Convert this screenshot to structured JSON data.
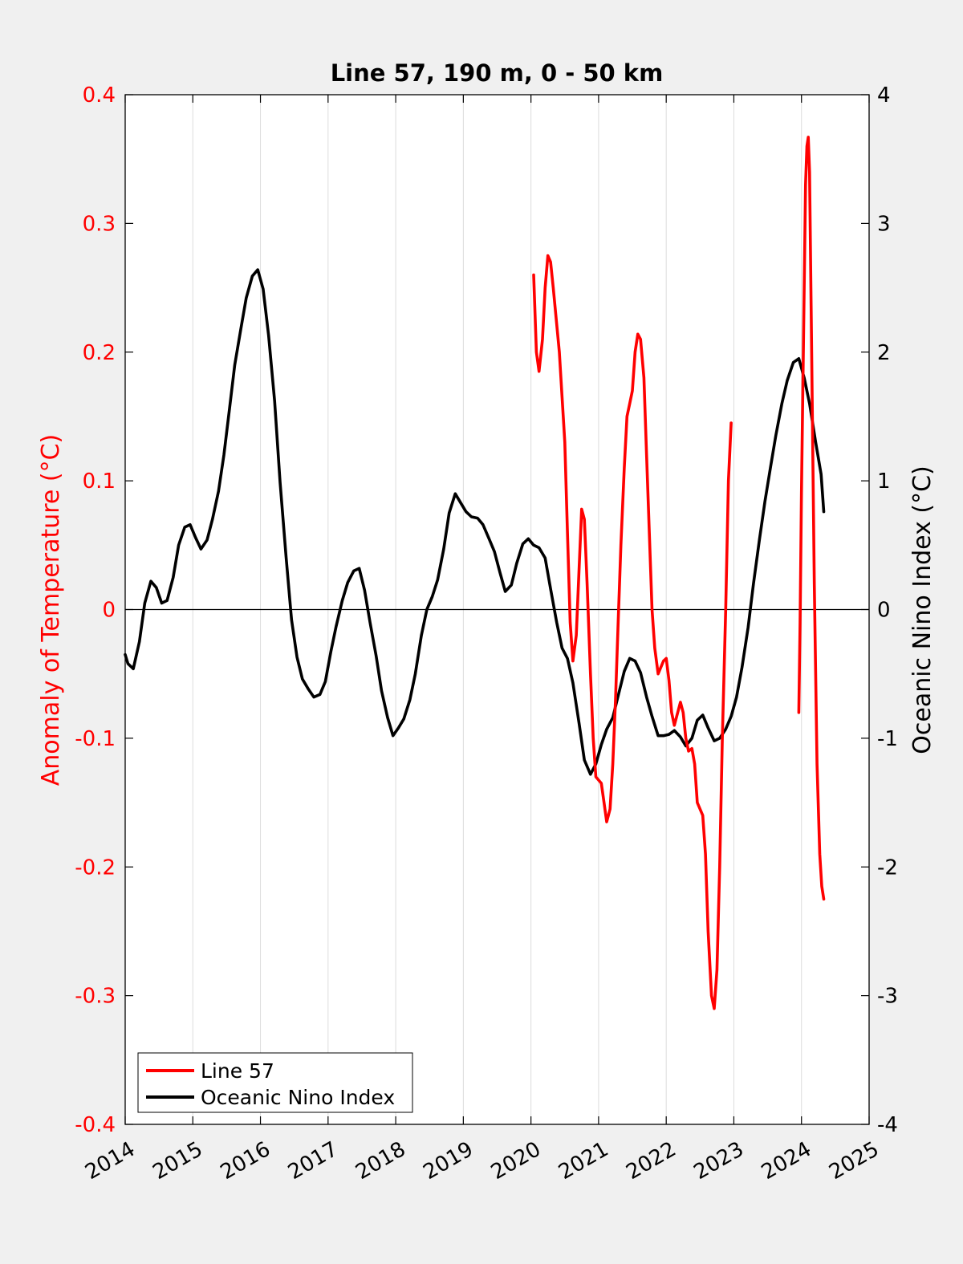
{
  "chart_data": {
    "type": "line",
    "title": "Line 57, 190 m, 0 - 50 km",
    "xlabel": "",
    "ylabel_left": "Anomaly of Temperature (°C)",
    "ylabel_right": "Oceanic Nino Index (°C)",
    "xlim": [
      2014,
      2025
    ],
    "ylim_left": [
      -0.4,
      0.4
    ],
    "ylim_right": [
      -4,
      4
    ],
    "x_ticks": [
      "2014",
      "2015",
      "2016",
      "2017",
      "2018",
      "2019",
      "2020",
      "2021",
      "2022",
      "2023",
      "2024",
      "2025"
    ],
    "y_ticks_left": [
      "-0.4",
      "-0.3",
      "-0.2",
      "-0.1",
      "0",
      "0.1",
      "0.2",
      "0.3",
      "0.4"
    ],
    "y_ticks_right": [
      "-4",
      "-3",
      "-2",
      "-1",
      "0",
      "1",
      "2",
      "3",
      "4"
    ],
    "grid": "vertical",
    "zero_line": true,
    "legend_position": "bottom-left",
    "colors": {
      "line57": "#ff0000",
      "oni": "#000000",
      "left_axis": "#ff0000",
      "right_axis": "#000000",
      "background": "#f0f0f0",
      "plot_area": "#ffffff"
    },
    "series": [
      {
        "name": "Line 57",
        "axis": "left",
        "segments": [
          [
            [
              2020.04,
              0.26
            ],
            [
              2020.08,
              0.2
            ],
            [
              2020.12,
              0.185
            ],
            [
              2020.17,
              0.21
            ],
            [
              2020.21,
              0.25
            ],
            [
              2020.25,
              0.275
            ],
            [
              2020.29,
              0.27
            ],
            [
              2020.33,
              0.25
            ],
            [
              2020.42,
              0.2
            ],
            [
              2020.5,
              0.13
            ],
            [
              2020.54,
              0.06
            ],
            [
              2020.58,
              -0.01
            ],
            [
              2020.62,
              -0.04
            ],
            [
              2020.67,
              -0.02
            ],
            [
              2020.71,
              0.03
            ],
            [
              2020.75,
              0.078
            ],
            [
              2020.79,
              0.07
            ],
            [
              2020.83,
              0.02
            ],
            [
              2020.88,
              -0.05
            ],
            [
              2020.92,
              -0.1
            ],
            [
              2020.96,
              -0.13
            ],
            [
              2021.04,
              -0.135
            ],
            [
              2021.08,
              -0.15
            ],
            [
              2021.12,
              -0.165
            ],
            [
              2021.17,
              -0.155
            ],
            [
              2021.21,
              -0.12
            ],
            [
              2021.25,
              -0.07
            ],
            [
              2021.29,
              -0.01
            ],
            [
              2021.33,
              0.05
            ],
            [
              2021.38,
              0.11
            ],
            [
              2021.42,
              0.15
            ],
            [
              2021.46,
              0.16
            ],
            [
              2021.5,
              0.17
            ],
            [
              2021.54,
              0.2
            ],
            [
              2021.58,
              0.214
            ],
            [
              2021.62,
              0.21
            ],
            [
              2021.67,
              0.18
            ],
            [
              2021.71,
              0.12
            ],
            [
              2021.75,
              0.06
            ],
            [
              2021.79,
              0.0
            ],
            [
              2021.83,
              -0.03
            ],
            [
              2021.88,
              -0.05
            ],
            [
              2021.92,
              -0.045
            ],
            [
              2021.96,
              -0.04
            ],
            [
              2022.0,
              -0.038
            ],
            [
              2022.04,
              -0.055
            ],
            [
              2022.08,
              -0.08
            ],
            [
              2022.12,
              -0.09
            ],
            [
              2022.17,
              -0.08
            ],
            [
              2022.21,
              -0.072
            ],
            [
              2022.25,
              -0.08
            ],
            [
              2022.29,
              -0.1
            ],
            [
              2022.33,
              -0.11
            ],
            [
              2022.38,
              -0.108
            ],
            [
              2022.42,
              -0.12
            ],
            [
              2022.46,
              -0.15
            ],
            [
              2022.5,
              -0.155
            ],
            [
              2022.54,
              -0.16
            ],
            [
              2022.58,
              -0.19
            ],
            [
              2022.62,
              -0.25
            ],
            [
              2022.67,
              -0.3
            ],
            [
              2022.71,
              -0.31
            ],
            [
              2022.75,
              -0.28
            ],
            [
              2022.79,
              -0.2
            ],
            [
              2022.83,
              -0.1
            ],
            [
              2022.88,
              0.0
            ],
            [
              2022.92,
              0.1
            ],
            [
              2022.96,
              0.145
            ]
          ],
          [
            [
              2023.96,
              -0.08
            ],
            [
              2023.98,
              -0.01
            ],
            [
              2024.0,
              0.09
            ],
            [
              2024.04,
              0.25
            ],
            [
              2024.06,
              0.33
            ],
            [
              2024.08,
              0.36
            ],
            [
              2024.1,
              0.367
            ],
            [
              2024.12,
              0.34
            ],
            [
              2024.15,
              0.2
            ],
            [
              2024.19,
              0.02
            ],
            [
              2024.23,
              -0.12
            ],
            [
              2024.27,
              -0.19
            ],
            [
              2024.3,
              -0.215
            ],
            [
              2024.33,
              -0.225
            ]
          ]
        ]
      },
      {
        "name": "Oceanic Nino Index",
        "axis": "right",
        "segments": [
          [
            [
              2014.0,
              -0.35
            ],
            [
              2014.04,
              -0.42
            ],
            [
              2014.12,
              -0.46
            ],
            [
              2014.21,
              -0.25
            ],
            [
              2014.29,
              0.05
            ],
            [
              2014.38,
              0.22
            ],
            [
              2014.46,
              0.17
            ],
            [
              2014.54,
              0.05
            ],
            [
              2014.62,
              0.07
            ],
            [
              2014.71,
              0.25
            ],
            [
              2014.79,
              0.5
            ],
            [
              2014.88,
              0.64
            ],
            [
              2014.96,
              0.66
            ],
            [
              2015.04,
              0.56
            ],
            [
              2015.12,
              0.47
            ],
            [
              2015.21,
              0.54
            ],
            [
              2015.29,
              0.7
            ],
            [
              2015.38,
              0.92
            ],
            [
              2015.46,
              1.2
            ],
            [
              2015.54,
              1.55
            ],
            [
              2015.62,
              1.9
            ],
            [
              2015.71,
              2.18
            ],
            [
              2015.79,
              2.42
            ],
            [
              2015.88,
              2.59
            ],
            [
              2015.96,
              2.64
            ],
            [
              2016.04,
              2.49
            ],
            [
              2016.12,
              2.13
            ],
            [
              2016.21,
              1.62
            ],
            [
              2016.29,
              0.99
            ],
            [
              2016.38,
              0.4
            ],
            [
              2016.46,
              -0.08
            ],
            [
              2016.54,
              -0.37
            ],
            [
              2016.62,
              -0.54
            ],
            [
              2016.71,
              -0.62
            ],
            [
              2016.79,
              -0.68
            ],
            [
              2016.88,
              -0.66
            ],
            [
              2016.96,
              -0.56
            ],
            [
              2017.04,
              -0.33
            ],
            [
              2017.12,
              -0.13
            ],
            [
              2017.21,
              0.07
            ],
            [
              2017.29,
              0.21
            ],
            [
              2017.38,
              0.3
            ],
            [
              2017.46,
              0.32
            ],
            [
              2017.54,
              0.15
            ],
            [
              2017.62,
              -0.1
            ],
            [
              2017.71,
              -0.36
            ],
            [
              2017.79,
              -0.63
            ],
            [
              2017.88,
              -0.84
            ],
            [
              2017.96,
              -0.98
            ],
            [
              2018.04,
              -0.92
            ],
            [
              2018.12,
              -0.85
            ],
            [
              2018.21,
              -0.7
            ],
            [
              2018.29,
              -0.5
            ],
            [
              2018.38,
              -0.2
            ],
            [
              2018.46,
              0.0
            ],
            [
              2018.54,
              0.1
            ],
            [
              2018.62,
              0.23
            ],
            [
              2018.71,
              0.47
            ],
            [
              2018.79,
              0.75
            ],
            [
              2018.88,
              0.9
            ],
            [
              2018.96,
              0.83
            ],
            [
              2019.04,
              0.76
            ],
            [
              2019.12,
              0.72
            ],
            [
              2019.21,
              0.71
            ],
            [
              2019.29,
              0.66
            ],
            [
              2019.38,
              0.55
            ],
            [
              2019.46,
              0.45
            ],
            [
              2019.54,
              0.29
            ],
            [
              2019.62,
              0.14
            ],
            [
              2019.71,
              0.19
            ],
            [
              2019.79,
              0.36
            ],
            [
              2019.88,
              0.51
            ],
            [
              2019.96,
              0.55
            ],
            [
              2020.04,
              0.5
            ],
            [
              2020.12,
              0.48
            ],
            [
              2020.21,
              0.4
            ],
            [
              2020.29,
              0.16
            ],
            [
              2020.38,
              -0.1
            ],
            [
              2020.46,
              -0.3
            ],
            [
              2020.54,
              -0.38
            ],
            [
              2020.62,
              -0.57
            ],
            [
              2020.71,
              -0.88
            ],
            [
              2020.79,
              -1.17
            ],
            [
              2020.88,
              -1.28
            ],
            [
              2020.96,
              -1.2
            ],
            [
              2021.04,
              -1.05
            ],
            [
              2021.12,
              -0.93
            ],
            [
              2021.21,
              -0.84
            ],
            [
              2021.29,
              -0.67
            ],
            [
              2021.38,
              -0.48
            ],
            [
              2021.46,
              -0.38
            ],
            [
              2021.54,
              -0.4
            ],
            [
              2021.62,
              -0.49
            ],
            [
              2021.71,
              -0.68
            ],
            [
              2021.79,
              -0.83
            ],
            [
              2021.88,
              -0.98
            ],
            [
              2021.96,
              -0.98
            ],
            [
              2022.04,
              -0.97
            ],
            [
              2022.12,
              -0.94
            ],
            [
              2022.21,
              -0.99
            ],
            [
              2022.29,
              -1.06
            ],
            [
              2022.38,
              -1.0
            ],
            [
              2022.46,
              -0.86
            ],
            [
              2022.54,
              -0.82
            ],
            [
              2022.62,
              -0.92
            ],
            [
              2022.71,
              -1.02
            ],
            [
              2022.79,
              -1.0
            ],
            [
              2022.88,
              -0.93
            ],
            [
              2022.96,
              -0.83
            ],
            [
              2023.04,
              -0.68
            ],
            [
              2023.12,
              -0.45
            ],
            [
              2023.21,
              -0.14
            ],
            [
              2023.29,
              0.2
            ],
            [
              2023.38,
              0.55
            ],
            [
              2023.46,
              0.84
            ],
            [
              2023.54,
              1.1
            ],
            [
              2023.62,
              1.35
            ],
            [
              2023.71,
              1.6
            ],
            [
              2023.79,
              1.78
            ],
            [
              2023.88,
              1.92
            ],
            [
              2023.96,
              1.95
            ],
            [
              2024.04,
              1.8
            ],
            [
              2024.12,
              1.6
            ],
            [
              2024.21,
              1.3
            ],
            [
              2024.29,
              1.05
            ],
            [
              2024.33,
              0.76
            ]
          ]
        ]
      }
    ]
  },
  "legend": {
    "items": [
      {
        "label": "Line 57",
        "color": "#ff0000"
      },
      {
        "label": "Oceanic Nino Index",
        "color": "#000000"
      }
    ]
  }
}
